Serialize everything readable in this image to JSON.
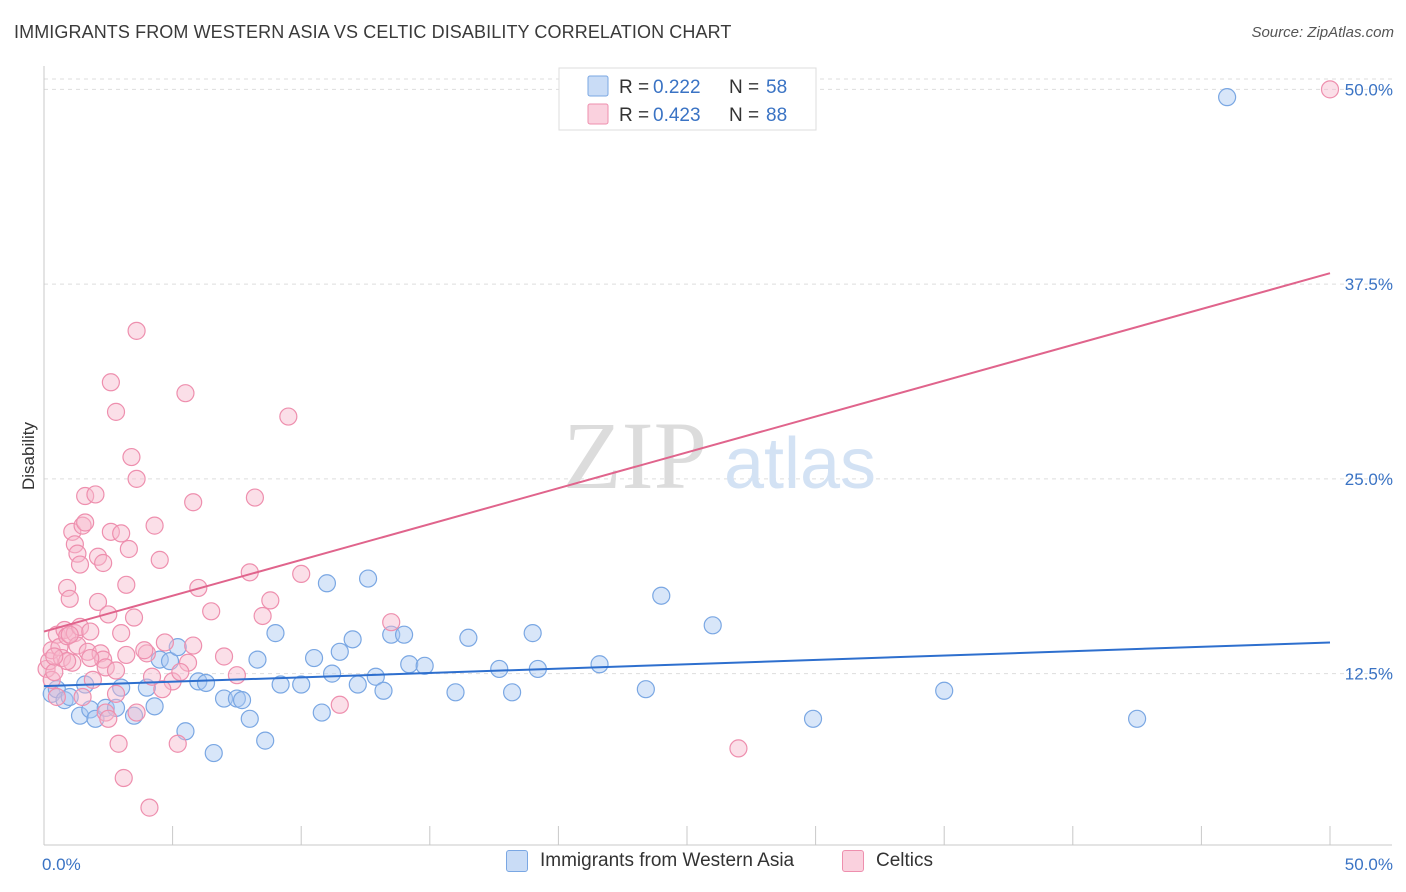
{
  "title": "IMMIGRANTS FROM WESTERN ASIA VS CELTIC DISABILITY CORRELATION CHART",
  "source": "Source: ZipAtlas.com",
  "watermark": {
    "zip": "ZIP",
    "atlas": "atlas"
  },
  "colors": {
    "blue_fill": "#a9c8f2",
    "blue_stroke": "#7aa7e3",
    "blue_line": "#2e6fce",
    "pink_fill": "#f6b9cc",
    "pink_stroke": "#ee8fae",
    "pink_line": "#e0648c",
    "axis_text_blue": "#3a73c4"
  },
  "chart_data": {
    "type": "scatter",
    "title": "IMMIGRANTS FROM WESTERN ASIA VS CELTIC DISABILITY CORRELATION CHART",
    "xlabel": "",
    "ylabel": "Disability",
    "xlim": [
      0,
      50
    ],
    "ylim": [
      1.5,
      51.5
    ],
    "x_tick_labels": [
      "0.0%",
      "50.0%"
    ],
    "y_ticks": [
      12.5,
      25.0,
      37.5,
      50.0
    ],
    "y_tick_labels": [
      "12.5%",
      "25.0%",
      "37.5%",
      "50.0%"
    ],
    "grid": true,
    "legend": {
      "position": "top-center",
      "entries": [
        {
          "r_label": "R = ",
          "r_value": "0.222",
          "n_label": "N = ",
          "n_value": "58"
        },
        {
          "r_label": "R = ",
          "r_value": "0.423",
          "n_label": "N = ",
          "n_value": "88"
        }
      ]
    },
    "series": [
      {
        "name": "Immigrants from Western Asia",
        "color": "blue",
        "trend": {
          "x": [
            0,
            50
          ],
          "y": [
            11.7,
            14.5
          ]
        },
        "points": [
          [
            0.3,
            11.2
          ],
          [
            0.5,
            11.5
          ],
          [
            0.8,
            10.8
          ],
          [
            1.0,
            11.0
          ],
          [
            1.4,
            9.8
          ],
          [
            1.8,
            10.2
          ],
          [
            2.0,
            9.6
          ],
          [
            2.4,
            10.3
          ],
          [
            2.8,
            10.3
          ],
          [
            3.0,
            11.6
          ],
          [
            3.5,
            9.8
          ],
          [
            4.0,
            11.6
          ],
          [
            4.3,
            10.4
          ],
          [
            4.5,
            13.4
          ],
          [
            4.9,
            13.3
          ],
          [
            5.2,
            14.2
          ],
          [
            5.5,
            8.8
          ],
          [
            6.0,
            12.0
          ],
          [
            6.3,
            11.9
          ],
          [
            6.6,
            7.4
          ],
          [
            7.0,
            10.9
          ],
          [
            7.5,
            10.9
          ],
          [
            7.7,
            10.8
          ],
          [
            8.0,
            9.6
          ],
          [
            8.3,
            13.4
          ],
          [
            8.6,
            8.2
          ],
          [
            9.0,
            15.1
          ],
          [
            9.2,
            11.8
          ],
          [
            10.0,
            11.8
          ],
          [
            10.5,
            13.5
          ],
          [
            10.8,
            10.0
          ],
          [
            11.0,
            18.3
          ],
          [
            11.2,
            12.5
          ],
          [
            11.5,
            13.9
          ],
          [
            12.0,
            14.7
          ],
          [
            12.2,
            11.8
          ],
          [
            12.6,
            18.6
          ],
          [
            12.9,
            12.3
          ],
          [
            13.2,
            11.4
          ],
          [
            13.5,
            15.0
          ],
          [
            14.0,
            15.0
          ],
          [
            14.2,
            13.1
          ],
          [
            14.8,
            13.0
          ],
          [
            16.0,
            11.3
          ],
          [
            16.5,
            14.8
          ],
          [
            17.7,
            12.8
          ],
          [
            18.2,
            11.3
          ],
          [
            19.0,
            15.1
          ],
          [
            19.2,
            12.8
          ],
          [
            21.6,
            13.1
          ],
          [
            23.4,
            11.5
          ],
          [
            24.0,
            17.5
          ],
          [
            26.0,
            15.6
          ],
          [
            29.9,
            9.6
          ],
          [
            35.0,
            11.4
          ],
          [
            42.5,
            9.6
          ],
          [
            46.0,
            49.5
          ],
          [
            1.6,
            11.8
          ]
        ]
      },
      {
        "name": "Celtics",
        "color": "pink",
        "trend": {
          "x": [
            0,
            50
          ],
          "y": [
            15.2,
            38.2
          ]
        },
        "points": [
          [
            0.1,
            12.8
          ],
          [
            0.2,
            13.3
          ],
          [
            0.3,
            12.1
          ],
          [
            0.3,
            14.0
          ],
          [
            0.4,
            12.6
          ],
          [
            0.5,
            15.0
          ],
          [
            0.6,
            14.2
          ],
          [
            0.7,
            13.5
          ],
          [
            0.8,
            15.3
          ],
          [
            0.9,
            14.9
          ],
          [
            0.9,
            18.0
          ],
          [
            1.0,
            17.3
          ],
          [
            1.1,
            13.2
          ],
          [
            1.1,
            21.6
          ],
          [
            1.2,
            15.1
          ],
          [
            1.2,
            20.8
          ],
          [
            1.3,
            14.3
          ],
          [
            1.3,
            20.2
          ],
          [
            1.4,
            15.5
          ],
          [
            1.4,
            19.5
          ],
          [
            1.5,
            22.0
          ],
          [
            1.6,
            23.9
          ],
          [
            1.6,
            22.2
          ],
          [
            1.7,
            13.9
          ],
          [
            1.8,
            15.2
          ],
          [
            1.9,
            12.1
          ],
          [
            2.0,
            24.0
          ],
          [
            2.1,
            17.1
          ],
          [
            2.1,
            20.0
          ],
          [
            2.2,
            13.8
          ],
          [
            2.3,
            13.4
          ],
          [
            2.3,
            19.6
          ],
          [
            2.4,
            12.9
          ],
          [
            2.4,
            10.0
          ],
          [
            2.5,
            16.3
          ],
          [
            2.5,
            9.6
          ],
          [
            2.6,
            21.6
          ],
          [
            2.6,
            31.2
          ],
          [
            2.8,
            12.7
          ],
          [
            2.8,
            29.3
          ],
          [
            2.9,
            8.0
          ],
          [
            3.0,
            21.5
          ],
          [
            3.0,
            15.1
          ],
          [
            3.1,
            5.8
          ],
          [
            3.2,
            18.2
          ],
          [
            3.2,
            13.7
          ],
          [
            3.3,
            20.5
          ],
          [
            3.4,
            26.4
          ],
          [
            3.5,
            16.1
          ],
          [
            3.6,
            25.0
          ],
          [
            3.6,
            34.5
          ],
          [
            4.0,
            13.8
          ],
          [
            4.1,
            3.9
          ],
          [
            4.2,
            12.3
          ],
          [
            4.3,
            22.0
          ],
          [
            4.5,
            19.8
          ],
          [
            4.7,
            14.5
          ],
          [
            5.0,
            12.0
          ],
          [
            5.2,
            8.0
          ],
          [
            5.5,
            30.5
          ],
          [
            5.6,
            13.2
          ],
          [
            5.8,
            23.5
          ],
          [
            6.0,
            18.0
          ],
          [
            6.5,
            16.5
          ],
          [
            7.0,
            13.6
          ],
          [
            7.5,
            12.4
          ],
          [
            8.0,
            19.0
          ],
          [
            8.2,
            23.8
          ],
          [
            8.5,
            16.2
          ],
          [
            8.8,
            17.2
          ],
          [
            9.5,
            29.0
          ],
          [
            10.0,
            18.9
          ],
          [
            11.5,
            10.5
          ],
          [
            13.5,
            15.8
          ],
          [
            27.0,
            7.7
          ],
          [
            50.0,
            50.0
          ],
          [
            3.6,
            10.0
          ],
          [
            5.3,
            12.6
          ],
          [
            4.6,
            11.5
          ],
          [
            0.5,
            11.0
          ],
          [
            1.5,
            11.0
          ],
          [
            2.8,
            11.2
          ],
          [
            0.9,
            13.3
          ],
          [
            1.0,
            15.0
          ],
          [
            0.4,
            13.6
          ],
          [
            1.8,
            13.5
          ],
          [
            3.9,
            14.0
          ],
          [
            5.8,
            14.3
          ]
        ]
      }
    ]
  },
  "bottom_legend": [
    {
      "label": "Immigrants from Western Asia"
    },
    {
      "label": "Celtics"
    }
  ]
}
